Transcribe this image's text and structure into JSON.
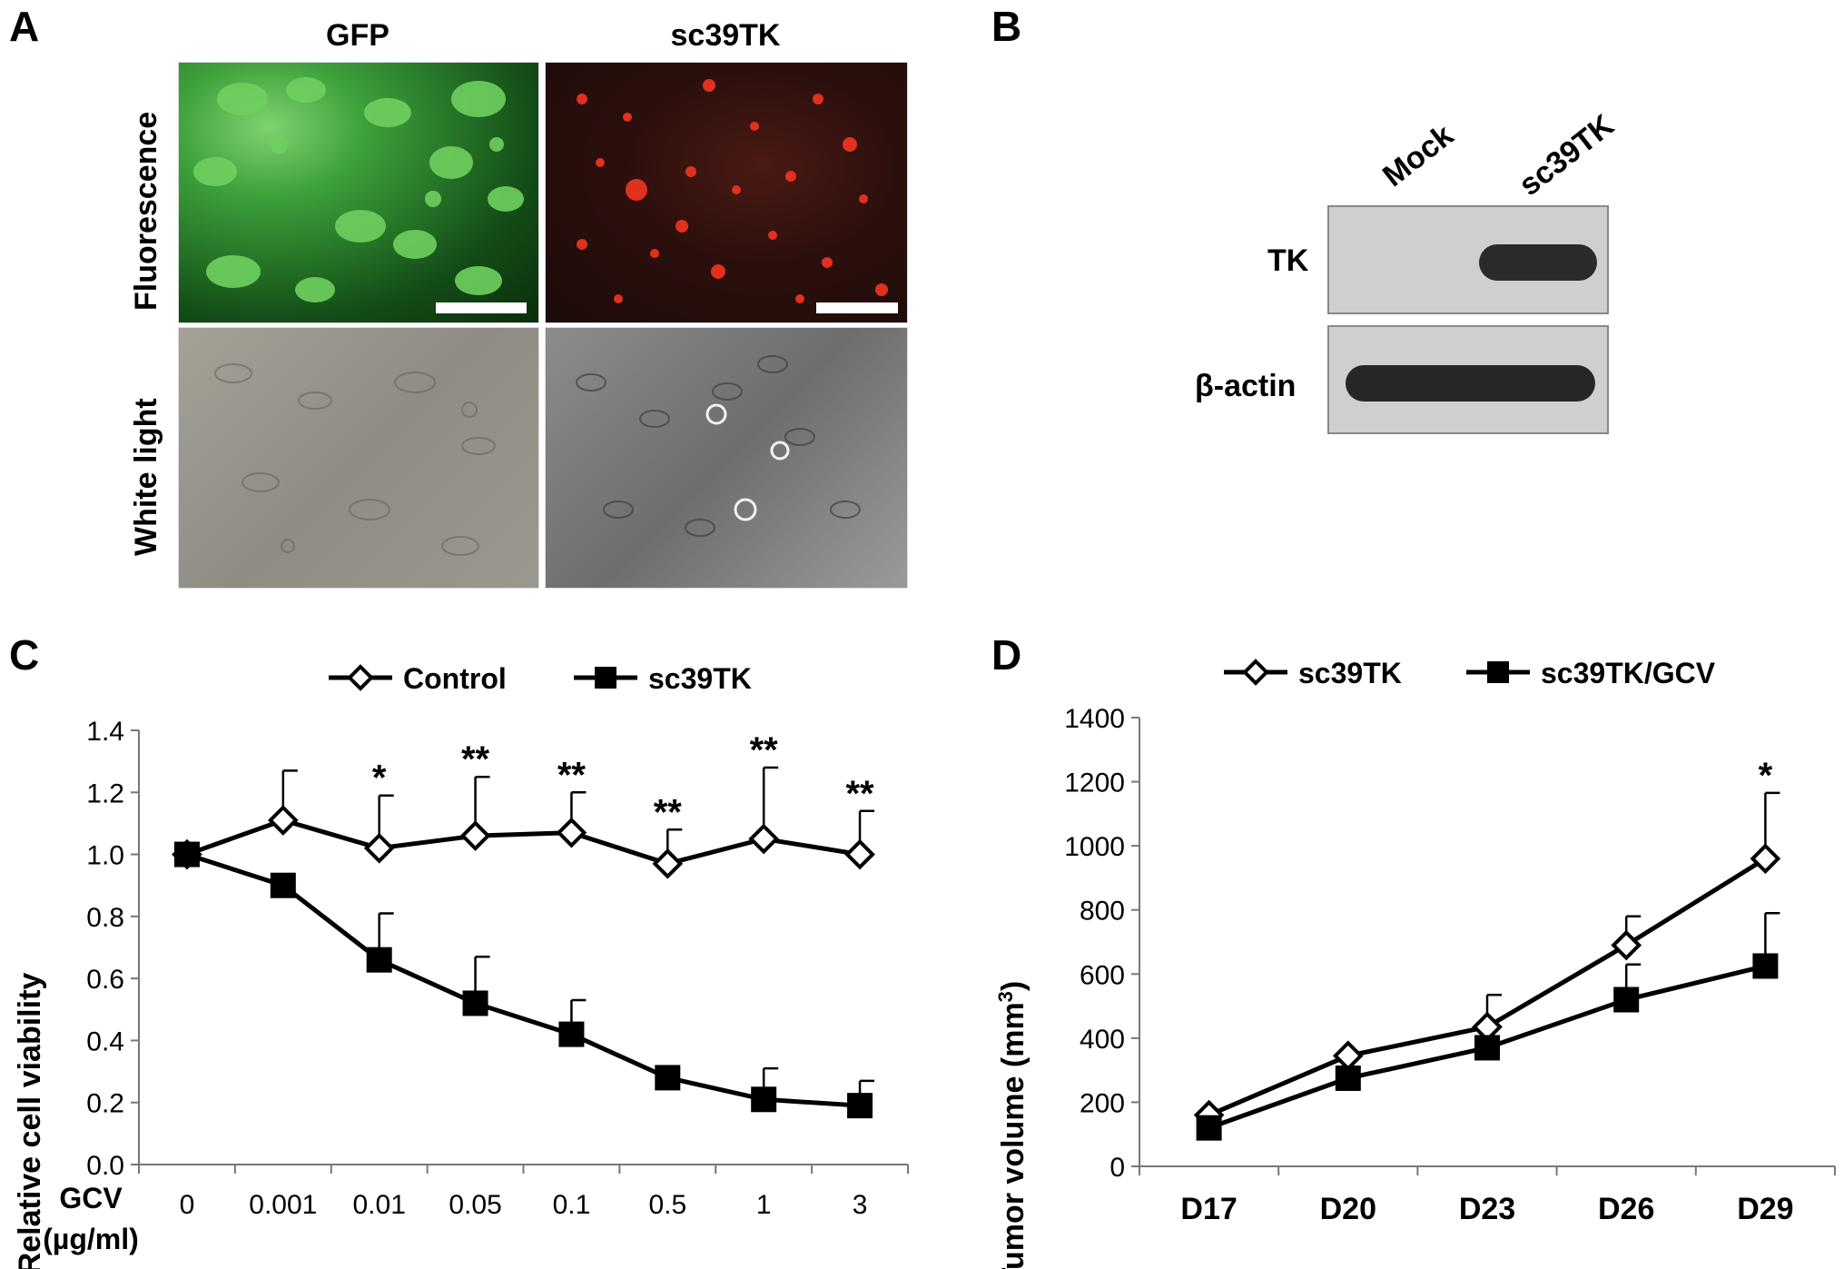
{
  "panels": {
    "A": "A",
    "B": "B",
    "C": "C",
    "D": "D"
  },
  "panel_a": {
    "col_gfp": "GFP",
    "col_sc39tk": "sc39TK",
    "row_fluorescence": "Fluorescence",
    "row_white_light": "White light",
    "colors": {
      "gfp": "#3da13c",
      "sc39tk": "#e0301e"
    }
  },
  "panel_b": {
    "lanes": [
      "Mock",
      "sc39TK"
    ],
    "rows": [
      "TK",
      "β-actin"
    ]
  },
  "chart_data": [
    {
      "type": "line",
      "panel": "C",
      "categories": [
        "0",
        "0.001",
        "0.01",
        "0.05",
        "0.1",
        "0.5",
        "1",
        "3"
      ],
      "x_title": "GCV",
      "x_unit": "(µg/ml)",
      "ylabel": "Relative cell viability",
      "ylim": [
        0,
        1.4
      ],
      "yticks": [
        "0.0",
        "0.2",
        "0.4",
        "0.6",
        "0.8",
        "1.0",
        "1.2",
        "1.4"
      ],
      "legend_position": "top",
      "series": [
        {
          "name": "Control",
          "marker": "open-diamond",
          "values": [
            1.0,
            1.11,
            1.02,
            1.06,
            1.07,
            0.97,
            1.05,
            1.0
          ],
          "errors": [
            0,
            0.16,
            0.17,
            0.19,
            0.13,
            0.11,
            0.23,
            0.14
          ]
        },
        {
          "name": "sc39TK",
          "marker": "filled-square",
          "values": [
            1.0,
            0.9,
            0.66,
            0.52,
            0.42,
            0.28,
            0.21,
            0.19
          ],
          "errors": [
            0,
            0,
            0.15,
            0.15,
            0.11,
            0,
            0.1,
            0.08
          ]
        }
      ],
      "significance": [
        "",
        "",
        "*",
        "**",
        "**",
        "**",
        "**",
        "**"
      ]
    },
    {
      "type": "line",
      "panel": "D",
      "categories": [
        "D17",
        "D20",
        "D23",
        "D26",
        "D29"
      ],
      "ylabel_main": "Tumor volume (mm",
      "ylabel_sup": "3",
      "ylabel_close": ")",
      "ylim": [
        0,
        1400
      ],
      "yticks": [
        "0",
        "200",
        "400",
        "600",
        "800",
        "1000",
        "1200",
        "1400"
      ],
      "legend_position": "top",
      "series": [
        {
          "name": "sc39TK",
          "marker": "open-diamond",
          "values": [
            160,
            345,
            435,
            690,
            960
          ],
          "errors": [
            0,
            0,
            100,
            90,
            205
          ]
        },
        {
          "name": "sc39TK/GCV",
          "marker": "filled-square",
          "values": [
            120,
            275,
            370,
            520,
            625
          ],
          "errors": [
            0,
            0,
            0,
            110,
            165
          ]
        }
      ],
      "significance": [
        "",
        "",
        "",
        "",
        "*"
      ]
    }
  ]
}
